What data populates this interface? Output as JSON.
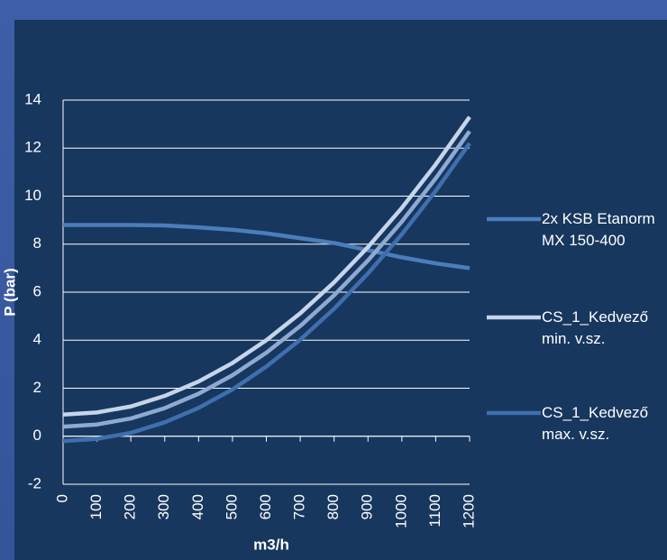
{
  "chart_data": {
    "type": "line",
    "x": [
      0,
      100,
      200,
      300,
      400,
      500,
      600,
      700,
      800,
      900,
      1000,
      1100,
      1200
    ],
    "series": [
      {
        "name": "2x KSB Etanorm MX 150-400",
        "color": "#4a7ebb",
        "values": [
          8.8,
          8.8,
          8.8,
          8.78,
          8.7,
          8.6,
          8.45,
          8.25,
          8.05,
          7.75,
          7.45,
          7.2,
          7.0
        ]
      },
      {
        "name": "CS_1_Kedvező min. v.sz.",
        "color": "#c6d5ea",
        "values": [
          0.9,
          0.99,
          1.24,
          1.68,
          2.28,
          3.05,
          4.0,
          5.12,
          6.41,
          7.88,
          9.51,
          11.32,
          13.3
        ]
      },
      {
        "color": "#8eaad3",
        "values": [
          0.4,
          0.49,
          0.74,
          1.17,
          1.77,
          2.54,
          3.48,
          4.59,
          5.87,
          7.32,
          8.94,
          10.74,
          12.7
        ]
      },
      {
        "name": "CS_1_Kedvező max. v.sz.",
        "color": "#3f6fae",
        "values": [
          -0.2,
          -0.11,
          0.14,
          0.58,
          1.18,
          1.95,
          2.9,
          4.02,
          5.31,
          6.78,
          8.41,
          10.22,
          12.2
        ]
      }
    ],
    "xlabel": "m3/h",
    "ylabel": "P (bar)",
    "xlim": [
      0,
      1200
    ],
    "xticks": [
      0,
      100,
      200,
      300,
      400,
      500,
      600,
      700,
      800,
      900,
      1000,
      1100,
      1200
    ],
    "ylim": [
      -2,
      14
    ],
    "yticks": [
      -2,
      0,
      2,
      4,
      6,
      8,
      10,
      12,
      14
    ],
    "grid": true,
    "legend": "right"
  }
}
